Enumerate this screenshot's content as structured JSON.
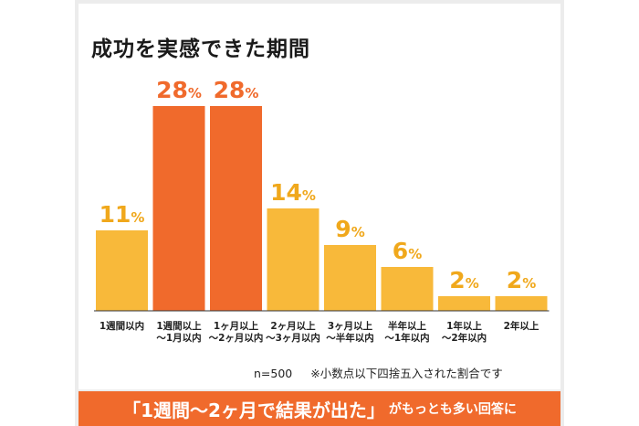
{
  "title": "成功を実感できた期間",
  "chart_data": {
    "type": "bar",
    "title": "成功を実感できた期間",
    "categories": [
      [
        "1週間以内"
      ],
      [
        "1週間以上",
        "〜1月以内"
      ],
      [
        "1ヶ月以上",
        "〜2ヶ月以内"
      ],
      [
        "2ヶ月以上",
        "〜3ヶ月以内"
      ],
      [
        "3ヶ月以上",
        "〜半年以内"
      ],
      [
        "半年以上",
        "〜1年以内"
      ],
      [
        "1年以上",
        "〜2年以内"
      ],
      [
        "2年以上"
      ]
    ],
    "values": [
      11,
      28,
      28,
      14,
      9,
      6,
      2,
      2
    ],
    "value_suffix": "%",
    "ylim": [
      0,
      28
    ],
    "grid": false,
    "highlighted": [
      1,
      2
    ],
    "colors": {
      "bar": "#f8b93a",
      "highlight": "#f06a2c",
      "label": "#f0a81c",
      "label_highlight": "#f06a2c",
      "axis": "#333333"
    }
  },
  "footnote": {
    "sample": "n=500",
    "rounding": "※小数点以下四捨五入された割合です"
  },
  "banner": {
    "main": "「1週間〜2ヶ月で結果が出た」",
    "sub": "がもっとも多い回答に",
    "color": "#f06a2c"
  }
}
